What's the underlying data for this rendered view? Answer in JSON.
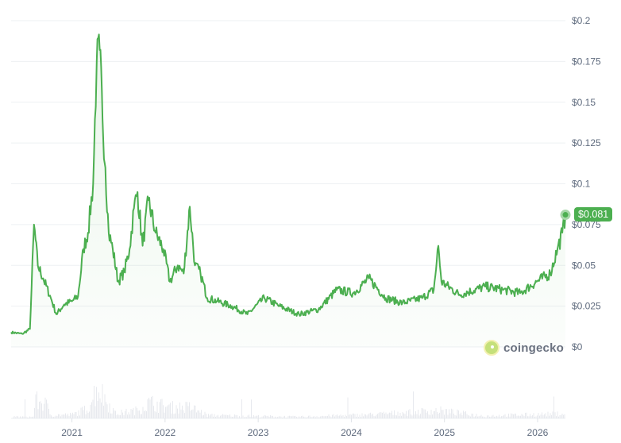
{
  "chart_data": {
    "type": "line",
    "title": "",
    "xlabel": "",
    "ylabel": "",
    "x_ticks": [
      "2021",
      "2022",
      "2023",
      "2024",
      "2025",
      "2026"
    ],
    "y_ticks": [
      "$0",
      "$0.025",
      "$0.05",
      "$0.075",
      "$0.1",
      "$0.125",
      "$0.15",
      "$0.175",
      "$0.2"
    ],
    "ylim": [
      0,
      0.2
    ],
    "xlim": [
      "2020-05-07",
      "2026-04-20"
    ],
    "grid": true,
    "series_color": "#4caf50",
    "current_price_label": "$0.081",
    "series": [
      {
        "points": [
          [
            "2020-05-07",
            0.009
          ],
          [
            "2020-06-20",
            0.008
          ],
          [
            "2020-07-20",
            0.011
          ],
          [
            "2020-08-05",
            0.075
          ],
          [
            "2020-08-20",
            0.05
          ],
          [
            "2020-09-10",
            0.042
          ],
          [
            "2020-10-10",
            0.03
          ],
          [
            "2020-11-01",
            0.02
          ],
          [
            "2020-12-01",
            0.026
          ],
          [
            "2021-01-01",
            0.028
          ],
          [
            "2021-01-25",
            0.031
          ],
          [
            "2021-02-15",
            0.06
          ],
          [
            "2021-03-05",
            0.07
          ],
          [
            "2021-03-25",
            0.1
          ],
          [
            "2021-04-08",
            0.175
          ],
          [
            "2021-04-20",
            0.182
          ],
          [
            "2021-05-01",
            0.14
          ],
          [
            "2021-05-12",
            0.11
          ],
          [
            "2021-05-25",
            0.07
          ],
          [
            "2021-06-10",
            0.06
          ],
          [
            "2021-07-01",
            0.04
          ],
          [
            "2021-07-25",
            0.046
          ],
          [
            "2021-08-15",
            0.06
          ],
          [
            "2021-09-01",
            0.085
          ],
          [
            "2021-09-15",
            0.095
          ],
          [
            "2021-10-05",
            0.062
          ],
          [
            "2021-10-28",
            0.09
          ],
          [
            "2021-11-25",
            0.07
          ],
          [
            "2021-12-25",
            0.06
          ],
          [
            "2022-01-20",
            0.04
          ],
          [
            "2022-02-20",
            0.05
          ],
          [
            "2022-03-15",
            0.045
          ],
          [
            "2022-04-08",
            0.086
          ],
          [
            "2022-04-28",
            0.05
          ],
          [
            "2022-05-20",
            0.045
          ],
          [
            "2022-06-15",
            0.03
          ],
          [
            "2022-07-25",
            0.028
          ],
          [
            "2022-09-20",
            0.025
          ],
          [
            "2022-11-20",
            0.02
          ],
          [
            "2023-01-25",
            0.03
          ],
          [
            "2023-03-25",
            0.025
          ],
          [
            "2023-06-10",
            0.02
          ],
          [
            "2023-08-25",
            0.023
          ],
          [
            "2023-11-05",
            0.035
          ],
          [
            "2024-01-10",
            0.033
          ],
          [
            "2024-03-10",
            0.042
          ],
          [
            "2024-05-15",
            0.03
          ],
          [
            "2024-07-20",
            0.027
          ],
          [
            "2024-10-05",
            0.03
          ],
          [
            "2024-11-20",
            0.035
          ],
          [
            "2024-12-08",
            0.062
          ],
          [
            "2024-12-20",
            0.04
          ],
          [
            "2025-03-01",
            0.032
          ],
          [
            "2025-06-10",
            0.037
          ],
          [
            "2025-08-20",
            0.035
          ],
          [
            "2025-10-25",
            0.033
          ],
          [
            "2025-12-28",
            0.04
          ],
          [
            "2026-02-20",
            0.045
          ],
          [
            "2026-03-20",
            0.06
          ],
          [
            "2026-04-08",
            0.07
          ],
          [
            "2026-04-20",
            0.081
          ]
        ]
      }
    ],
    "volume_relative": [
      [
        "2020-05-07",
        0.05
      ],
      [
        "2020-08-01",
        0.05
      ],
      [
        "2020-08-05",
        0.55
      ],
      [
        "2020-09-15",
        0.5
      ],
      [
        "2020-10-10",
        0.1
      ],
      [
        "2021-01-01",
        0.12
      ],
      [
        "2021-03-01",
        0.3
      ],
      [
        "2021-04-10",
        1.0
      ],
      [
        "2021-05-10",
        0.6
      ],
      [
        "2021-06-20",
        0.15
      ],
      [
        "2021-09-10",
        0.25
      ],
      [
        "2021-11-01",
        0.5
      ],
      [
        "2022-01-15",
        0.35
      ],
      [
        "2022-04-10",
        0.35
      ],
      [
        "2022-06-15",
        0.1
      ],
      [
        "2023-06-01",
        0.05
      ],
      [
        "2024-03-10",
        0.12
      ],
      [
        "2024-12-08",
        0.25
      ],
      [
        "2025-06-01",
        0.08
      ],
      [
        "2026-04-20",
        0.15
      ]
    ]
  },
  "brand": {
    "name": "coingecko"
  }
}
